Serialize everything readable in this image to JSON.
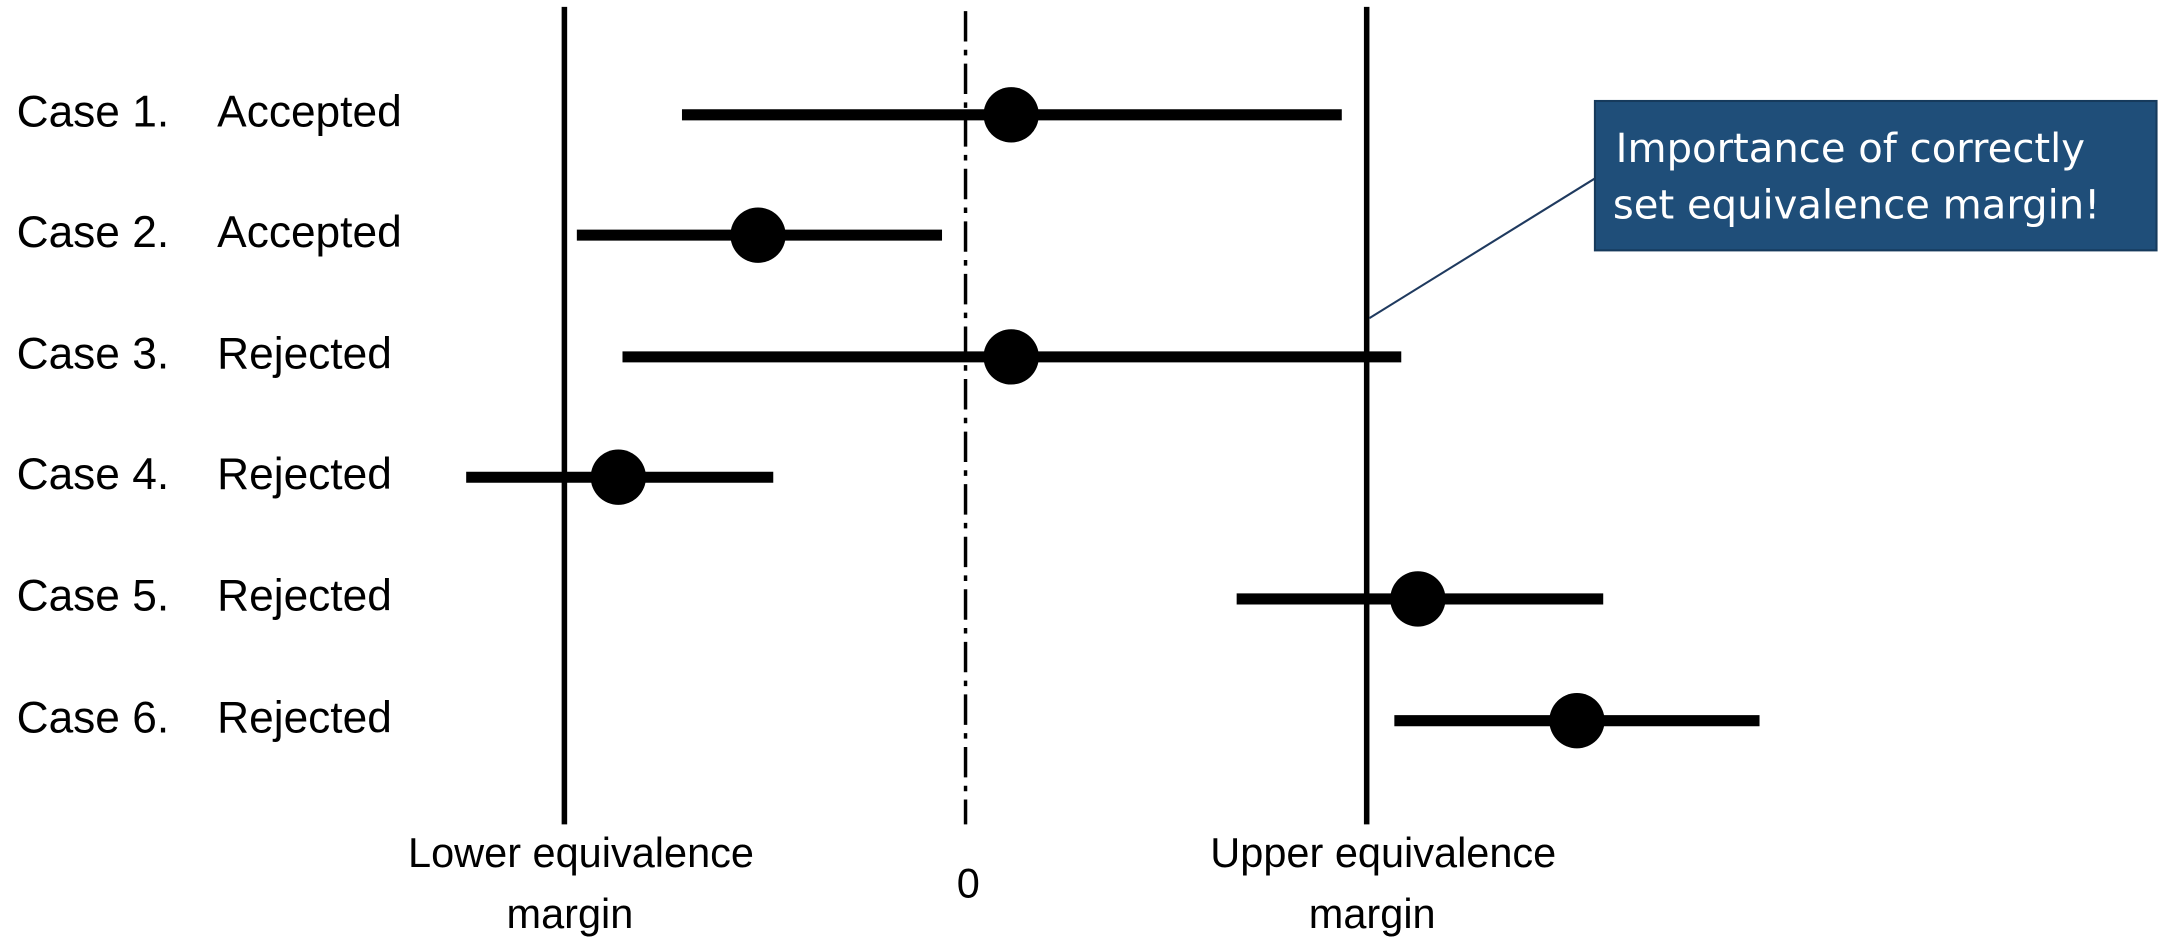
{
  "cases": [
    {
      "label": "Case 1.",
      "status": "Accepted"
    },
    {
      "label": "Case 2.",
      "status": "Accepted"
    },
    {
      "label": "Case 3.",
      "status": "Rejected"
    },
    {
      "label": "Case 4.",
      "status": "Rejected"
    },
    {
      "label": "Case 5.",
      "status": "Rejected"
    },
    {
      "label": "Case 6.",
      "status": "Rejected"
    }
  ],
  "axis_labels": {
    "lower": [
      "Lower equivalence",
      "margin"
    ],
    "zero": "0",
    "upper": [
      "Upper equivalence",
      "margin"
    ]
  },
  "callout": [
    "Importance of correctly",
    "set equivalence margin!"
  ]
}
